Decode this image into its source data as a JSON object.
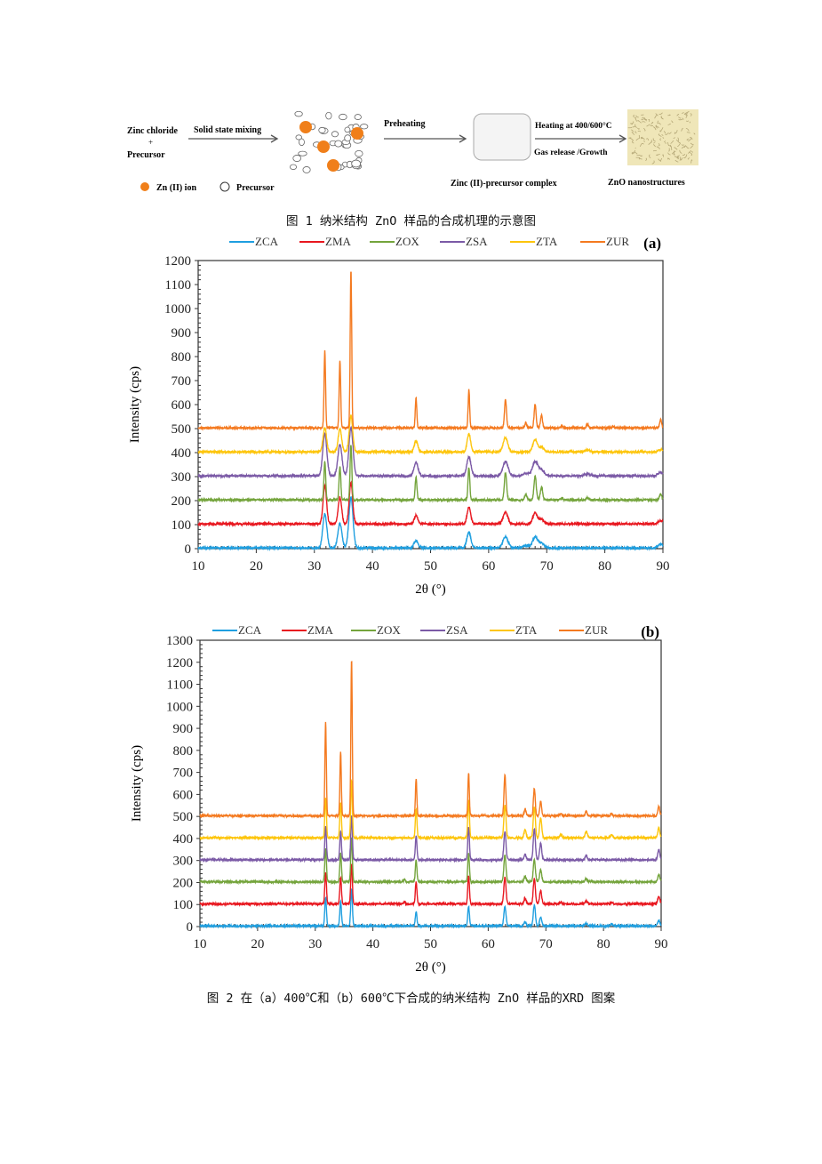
{
  "figure1": {
    "input_label_1": "Zinc chloride",
    "plus": "+",
    "input_label_2": "Precursor",
    "step1": "Solid state mixing",
    "step2": "Preheating",
    "step3a": "Heating at 400/600°C",
    "step3b": "Gas release /Growth",
    "complex_label": "Zinc (II)-precursor complex",
    "product_label": "ZnO nanostructures",
    "legend_ion": "Zn (II) ion",
    "legend_precursor": "Precursor",
    "colors": {
      "ion": "#f07f1a",
      "product_bg": "#efe6b8"
    },
    "caption": "图 1 纳米结构 ZnO 样品的合成机理的示意图"
  },
  "caption2": "图 2 在（a）400℃和（b）600℃下合成的纳米结构 ZnO 样品的XRD 图案",
  "chart_data": [
    {
      "type": "line",
      "panel_label": "(a)",
      "xlabel": "2θ (°)",
      "ylabel": "Intensity (cps)",
      "xlim": [
        10,
        90
      ],
      "ylim": [
        0,
        1200
      ],
      "xticks": [
        10,
        20,
        30,
        40,
        50,
        60,
        70,
        80,
        90
      ],
      "ystep": 100,
      "legend_position": "top",
      "series": [
        {
          "name": "ZCA",
          "color": "#1f9fe0",
          "offset": 0,
          "width": 0.35,
          "peaks": [
            [
              31.8,
              140
            ],
            [
              34.4,
              100
            ],
            [
              36.3,
              210
            ],
            [
              47.5,
              30
            ],
            [
              56.6,
              65
            ],
            [
              62.9,
              45
            ],
            [
              66.4,
              10
            ],
            [
              68.0,
              45
            ],
            [
              69.1,
              20
            ],
            [
              89.6,
              15
            ]
          ]
        },
        {
          "name": "ZMA",
          "color": "#e8171f",
          "offset": 100,
          "width": 0.3,
          "peaks": [
            [
              31.8,
              160
            ],
            [
              34.4,
              110
            ],
            [
              36.3,
              170
            ],
            [
              47.5,
              35
            ],
            [
              56.6,
              70
            ],
            [
              62.9,
              50
            ],
            [
              68.0,
              45
            ],
            [
              69.1,
              20
            ],
            [
              89.6,
              15
            ]
          ]
        },
        {
          "name": "ZOX",
          "color": "#74a43c",
          "offset": 200,
          "width": 0.15,
          "peaks": [
            [
              31.8,
              160
            ],
            [
              34.4,
              140
            ],
            [
              36.3,
              230
            ],
            [
              47.5,
              95
            ],
            [
              56.6,
              135
            ],
            [
              62.9,
              115
            ],
            [
              66.4,
              20
            ],
            [
              68.0,
              100
            ],
            [
              69.1,
              55
            ],
            [
              72.6,
              8
            ],
            [
              77.0,
              10
            ],
            [
              89.6,
              25
            ]
          ]
        },
        {
          "name": "ZSA",
          "color": "#7b5aa6",
          "offset": 300,
          "width": 0.35,
          "peaks": [
            [
              31.8,
              175
            ],
            [
              34.4,
              130
            ],
            [
              36.3,
              200
            ],
            [
              47.5,
              55
            ],
            [
              56.6,
              80
            ],
            [
              62.9,
              60
            ],
            [
              66.4,
              10
            ],
            [
              68.0,
              60
            ],
            [
              69.1,
              25
            ],
            [
              77.0,
              8
            ],
            [
              89.6,
              15
            ]
          ]
        },
        {
          "name": "ZTA",
          "color": "#fdc50c",
          "offset": 400,
          "width": 0.3,
          "peaks": [
            [
              31.8,
              100
            ],
            [
              34.4,
              95
            ],
            [
              36.3,
              150
            ],
            [
              47.5,
              45
            ],
            [
              56.6,
              75
            ],
            [
              62.9,
              60
            ],
            [
              68.0,
              50
            ],
            [
              69.1,
              20
            ],
            [
              77.0,
              8
            ],
            [
              89.6,
              10
            ]
          ]
        },
        {
          "name": "ZUR",
          "color": "#f47a20",
          "offset": 500,
          "width": 0.13,
          "peaks": [
            [
              31.8,
              320
            ],
            [
              34.4,
              280
            ],
            [
              36.3,
              655
            ],
            [
              47.5,
              125
            ],
            [
              56.6,
              160
            ],
            [
              62.9,
              120
            ],
            [
              66.4,
              20
            ],
            [
              68.0,
              100
            ],
            [
              69.1,
              55
            ],
            [
              72.6,
              5
            ],
            [
              77.0,
              15
            ],
            [
              81.4,
              8
            ],
            [
              89.6,
              35
            ]
          ]
        }
      ]
    },
    {
      "type": "line",
      "panel_label": "(b)",
      "xlabel": "2θ (°)",
      "ylabel": "Intensity (cps)",
      "xlim": [
        10,
        90
      ],
      "ylim": [
        0,
        1300
      ],
      "xticks": [
        10,
        20,
        30,
        40,
        50,
        60,
        70,
        80,
        90
      ],
      "ystep": 100,
      "legend_position": "top",
      "series": [
        {
          "name": "ZCA",
          "color": "#1f9fe0",
          "offset": 0,
          "width": 0.14,
          "peaks": [
            [
              31.8,
              130
            ],
            [
              34.4,
              110
            ],
            [
              36.3,
              170
            ],
            [
              47.5,
              65
            ],
            [
              56.6,
              90
            ],
            [
              62.9,
              90
            ],
            [
              66.4,
              20
            ],
            [
              68.0,
              95
            ],
            [
              69.1,
              40
            ],
            [
              77.0,
              12
            ],
            [
              81.4,
              8
            ],
            [
              89.6,
              25
            ]
          ]
        },
        {
          "name": "ZMA",
          "color": "#e8171f",
          "offset": 100,
          "width": 0.14,
          "peaks": [
            [
              31.8,
              140
            ],
            [
              34.4,
              120
            ],
            [
              36.3,
              180
            ],
            [
              45.5,
              8
            ],
            [
              47.5,
              100
            ],
            [
              56.6,
              130
            ],
            [
              62.9,
              120
            ],
            [
              66.4,
              25
            ],
            [
              68.0,
              115
            ],
            [
              69.1,
              60
            ],
            [
              72.6,
              8
            ],
            [
              77.0,
              15
            ],
            [
              81.4,
              8
            ],
            [
              89.6,
              35
            ]
          ]
        },
        {
          "name": "ZOX",
          "color": "#74a43c",
          "offset": 200,
          "width": 0.14,
          "peaks": [
            [
              31.8,
              150
            ],
            [
              34.4,
              130
            ],
            [
              36.3,
              200
            ],
            [
              45.5,
              10
            ],
            [
              47.5,
              100
            ],
            [
              56.6,
              130
            ],
            [
              62.9,
              120
            ],
            [
              66.4,
              25
            ],
            [
              68.0,
              100
            ],
            [
              69.1,
              55
            ],
            [
              77.0,
              15
            ],
            [
              89.6,
              35
            ]
          ]
        },
        {
          "name": "ZSA",
          "color": "#7b5aa6",
          "offset": 300,
          "width": 0.14,
          "peaks": [
            [
              31.8,
              150
            ],
            [
              34.4,
              130
            ],
            [
              36.3,
              200
            ],
            [
              47.5,
              110
            ],
            [
              56.6,
              150
            ],
            [
              62.9,
              130
            ],
            [
              66.4,
              25
            ],
            [
              68.0,
              140
            ],
            [
              69.1,
              75
            ],
            [
              77.0,
              20
            ],
            [
              89.6,
              45
            ]
          ]
        },
        {
          "name": "ZTA",
          "color": "#fdc50c",
          "offset": 400,
          "width": 0.14,
          "peaks": [
            [
              31.8,
              180
            ],
            [
              34.4,
              160
            ],
            [
              36.3,
              260
            ],
            [
              47.5,
              130
            ],
            [
              56.6,
              170
            ],
            [
              62.9,
              150
            ],
            [
              66.4,
              35
            ],
            [
              68.0,
              140
            ],
            [
              69.1,
              90
            ],
            [
              72.6,
              15
            ],
            [
              77.0,
              30
            ],
            [
              81.4,
              15
            ],
            [
              89.6,
              45
            ]
          ]
        },
        {
          "name": "ZUR",
          "color": "#f47a20",
          "offset": 500,
          "width": 0.12,
          "peaks": [
            [
              31.8,
              425
            ],
            [
              34.4,
              290
            ],
            [
              36.3,
              710
            ],
            [
              47.5,
              170
            ],
            [
              56.6,
              195
            ],
            [
              62.9,
              185
            ],
            [
              66.4,
              30
            ],
            [
              68.0,
              125
            ],
            [
              69.1,
              65
            ],
            [
              72.6,
              10
            ],
            [
              77.0,
              20
            ],
            [
              81.4,
              10
            ],
            [
              89.6,
              45
            ]
          ]
        }
      ]
    }
  ]
}
